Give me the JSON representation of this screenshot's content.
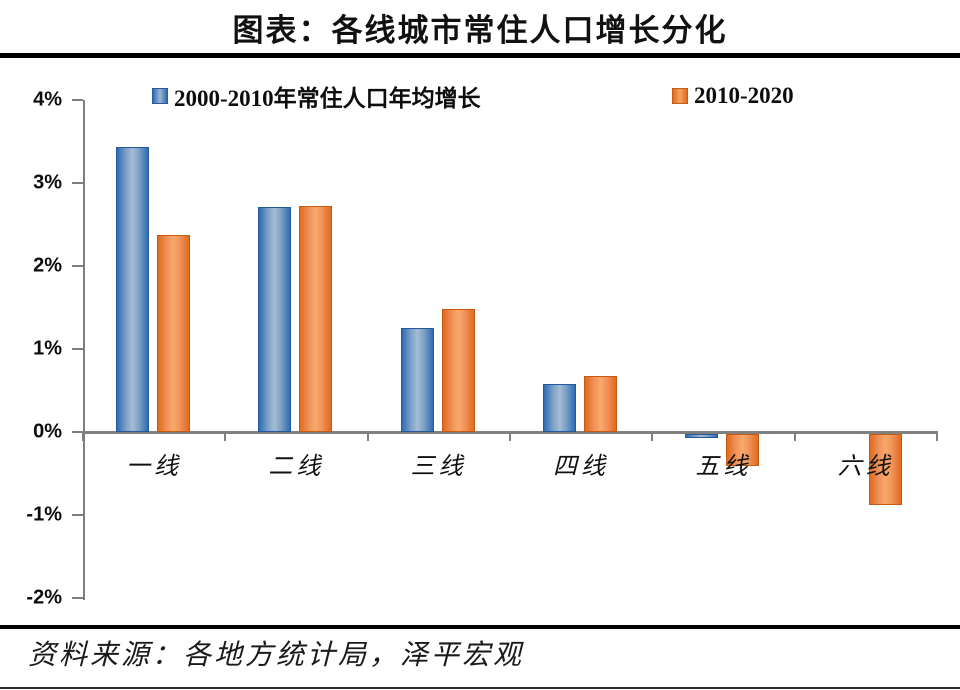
{
  "title": "图表：各线城市常住人口增长分化",
  "source": "资料来源：各地方统计局，泽平宏观",
  "colors": {
    "series_blue": "#2e6cb3",
    "series_blue_mid": "#a3bcd6",
    "series_orange": "#e06b1e",
    "series_orange_mid": "#f8a96c",
    "axis_gray": "#808080",
    "rule_black": "#000000",
    "text_black": "#0d0d0d"
  },
  "chart_data": {
    "type": "bar",
    "title": "图表：各线城市常住人口增长分化",
    "categories": [
      "一线",
      "二线",
      "三线",
      "四线",
      "五线",
      "六线"
    ],
    "series": [
      {
        "name": "2000-2010年常住人口年均增长",
        "color": "#2e6cb3",
        "values": [
          3.43,
          2.71,
          1.25,
          0.58,
          -0.05,
          0.0
        ]
      },
      {
        "name": "2010-2020",
        "color": "#e06b1e",
        "values": [
          2.37,
          2.72,
          1.48,
          0.67,
          -0.39,
          -0.85
        ]
      }
    ],
    "xlabel": "",
    "ylabel": "",
    "ylim": [
      -2,
      4
    ],
    "ytick_step": 1,
    "ytick_labels": [
      "4%",
      "3%",
      "2%",
      "1%",
      "0%",
      "-1%",
      "-2%"
    ],
    "legend_position": "top",
    "grid": false,
    "source_note": "资料来源：各地方统计局，泽平宏观"
  }
}
